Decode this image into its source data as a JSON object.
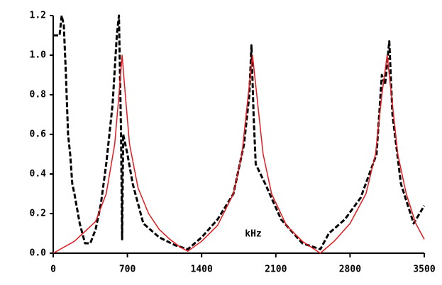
{
  "chart_data": {
    "type": "line",
    "annotation": "kHz",
    "xlim": [
      0,
      3500
    ],
    "xticks": [
      0,
      700,
      1400,
      2100,
      2800,
      3500
    ],
    "ylim": [
      0,
      1.2
    ],
    "yticks": [
      {
        "value": 0,
        "label": "0.0"
      },
      0.2,
      0.4,
      0.6,
      0.8,
      {
        "value": 1,
        "label": "1.0"
      },
      1.2
    ],
    "grid": false,
    "series": [
      {
        "color": "#000000",
        "style": "dashed",
        "x": [
          0,
          60,
          80,
          100,
          120,
          140,
          160,
          180,
          200,
          250,
          300,
          350,
          400,
          450,
          500,
          560,
          600,
          620,
          640,
          650,
          660,
          700,
          750,
          850,
          1000,
          1150,
          1270,
          1400,
          1550,
          1700,
          1800,
          1850,
          1870,
          1890,
          1910,
          2000,
          2150,
          2350,
          2520,
          2600,
          2750,
          2900,
          3050,
          3100,
          3130,
          3170,
          3200,
          3280,
          3400,
          3500
        ],
        "values": [
          1.1,
          1.1,
          1.2,
          1.15,
          0.9,
          0.6,
          0.5,
          0.35,
          0.3,
          0.15,
          0.05,
          0.05,
          0.12,
          0.25,
          0.45,
          0.75,
          1.1,
          1.2,
          0.6,
          0.07,
          0.6,
          0.5,
          0.35,
          0.15,
          0.08,
          0.04,
          0.02,
          0.08,
          0.17,
          0.3,
          0.55,
          0.8,
          1.05,
          0.7,
          0.45,
          0.35,
          0.17,
          0.05,
          0.02,
          0.1,
          0.17,
          0.28,
          0.5,
          0.9,
          0.85,
          1.07,
          0.7,
          0.35,
          0.15,
          0.24
        ]
      },
      {
        "color": "#e8191e",
        "style": "solid",
        "x": [
          0,
          200,
          400,
          500,
          580,
          620,
          650,
          680,
          720,
          800,
          900,
          1000,
          1100,
          1200,
          1270,
          1400,
          1550,
          1700,
          1780,
          1840,
          1880,
          1920,
          1980,
          2060,
          2200,
          2350,
          2520,
          2650,
          2800,
          2950,
          3040,
          3100,
          3150,
          3190,
          3250,
          3330,
          3420,
          3500
        ],
        "values": [
          0,
          0.06,
          0.16,
          0.3,
          0.55,
          0.8,
          1,
          0.8,
          0.55,
          0.33,
          0.2,
          0.12,
          0.07,
          0.03,
          0.01,
          0.06,
          0.14,
          0.3,
          0.5,
          0.8,
          1,
          0.8,
          0.5,
          0.3,
          0.14,
          0.06,
          0,
          0.06,
          0.15,
          0.3,
          0.5,
          0.8,
          1,
          0.8,
          0.5,
          0.3,
          0.15,
          0.07
        ]
      }
    ]
  }
}
